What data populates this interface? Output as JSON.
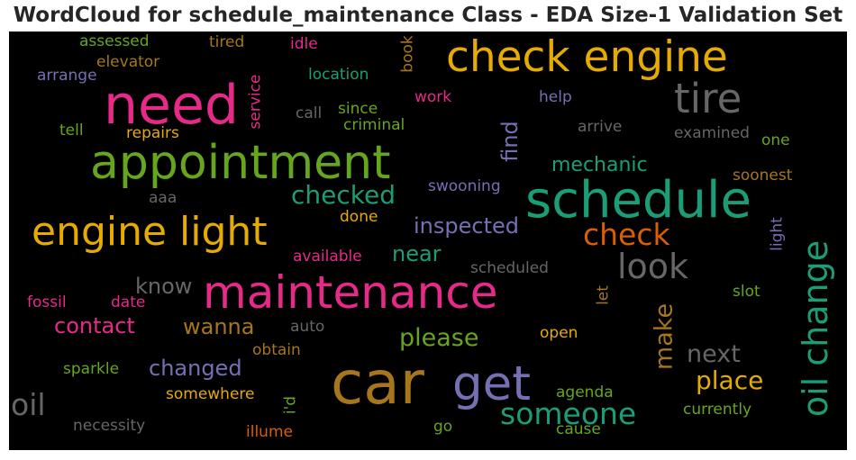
{
  "title": "WordCloud for schedule_maintenance Class - EDA Size-1 Validation Set",
  "words": [
    {
      "text": "maintenance",
      "color": "#e7298a",
      "vertical": false
    },
    {
      "text": "car",
      "color": "#a6761d",
      "vertical": false
    },
    {
      "text": "need",
      "color": "#e7298a",
      "vertical": false
    },
    {
      "text": "appointment",
      "color": "#66a61e",
      "vertical": false
    },
    {
      "text": "schedule",
      "color": "#1b9e77",
      "vertical": false
    },
    {
      "text": "check engine",
      "color": "#e6ab02",
      "vertical": false
    },
    {
      "text": "get",
      "color": "#7570b3",
      "vertical": false
    },
    {
      "text": "engine light",
      "color": "#e6ab02",
      "vertical": false
    },
    {
      "text": "tire",
      "color": "#666666",
      "vertical": false
    },
    {
      "text": "oil change",
      "color": "#1b9e77",
      "vertical": true
    },
    {
      "text": "look",
      "color": "#666666",
      "vertical": false
    },
    {
      "text": "check",
      "color": "#d95f02",
      "vertical": false
    },
    {
      "text": "someone",
      "color": "#1b9e77",
      "vertical": false
    },
    {
      "text": "oil",
      "color": "#666666",
      "vertical": false
    },
    {
      "text": "checked",
      "color": "#1b9e77",
      "vertical": false
    },
    {
      "text": "place",
      "color": "#e6ab02",
      "vertical": false
    },
    {
      "text": "please",
      "color": "#66a61e",
      "vertical": false
    },
    {
      "text": "make",
      "color": "#a6761d",
      "vertical": true
    },
    {
      "text": "next",
      "color": "#666666",
      "vertical": false
    },
    {
      "text": "inspected",
      "color": "#7570b3",
      "vertical": false
    },
    {
      "text": "changed",
      "color": "#7570b3",
      "vertical": false
    },
    {
      "text": "contact",
      "color": "#e7298a",
      "vertical": false
    },
    {
      "text": "wanna",
      "color": "#a6761d",
      "vertical": false
    },
    {
      "text": "mechanic",
      "color": "#1b9e77",
      "vertical": false
    },
    {
      "text": "find",
      "color": "#7570b3",
      "vertical": true
    },
    {
      "text": "know",
      "color": "#666666",
      "vertical": false
    },
    {
      "text": "near",
      "color": "#1b9e77",
      "vertical": false
    },
    {
      "text": "assessed",
      "color": "#66a61e",
      "vertical": false
    },
    {
      "text": "tired",
      "color": "#a6761d",
      "vertical": false
    },
    {
      "text": "idle",
      "color": "#e7298a",
      "vertical": false
    },
    {
      "text": "book",
      "color": "#a6761d",
      "vertical": true
    },
    {
      "text": "elevator",
      "color": "#a6761d",
      "vertical": false
    },
    {
      "text": "arrange",
      "color": "#7570b3",
      "vertical": false
    },
    {
      "text": "service",
      "color": "#e7298a",
      "vertical": true
    },
    {
      "text": "location",
      "color": "#1b9e77",
      "vertical": false
    },
    {
      "text": "work",
      "color": "#e7298a",
      "vertical": false
    },
    {
      "text": "help",
      "color": "#7570b3",
      "vertical": false
    },
    {
      "text": "call",
      "color": "#666666",
      "vertical": false
    },
    {
      "text": "since",
      "color": "#66a61e",
      "vertical": false
    },
    {
      "text": "criminal",
      "color": "#66a61e",
      "vertical": false
    },
    {
      "text": "arrive",
      "color": "#666666",
      "vertical": false
    },
    {
      "text": "tell",
      "color": "#66a61e",
      "vertical": false
    },
    {
      "text": "repairs",
      "color": "#e6ab02",
      "vertical": false
    },
    {
      "text": "examined",
      "color": "#666666",
      "vertical": false
    },
    {
      "text": "one",
      "color": "#66a61e",
      "vertical": false
    },
    {
      "text": "soonest",
      "color": "#a6761d",
      "vertical": false
    },
    {
      "text": "swooning",
      "color": "#7570b3",
      "vertical": false
    },
    {
      "text": "aaa",
      "color": "#666666",
      "vertical": false
    },
    {
      "text": "done",
      "color": "#e6ab02",
      "vertical": false
    },
    {
      "text": "light",
      "color": "#7570b3",
      "vertical": true
    },
    {
      "text": "available",
      "color": "#e7298a",
      "vertical": false
    },
    {
      "text": "scheduled",
      "color": "#666666",
      "vertical": false
    },
    {
      "text": "fossil",
      "color": "#e7298a",
      "vertical": false
    },
    {
      "text": "date",
      "color": "#e7298a",
      "vertical": false
    },
    {
      "text": "let",
      "color": "#a6761d",
      "vertical": true
    },
    {
      "text": "slot",
      "color": "#66a61e",
      "vertical": false
    },
    {
      "text": "auto",
      "color": "#666666",
      "vertical": false
    },
    {
      "text": "obtain",
      "color": "#a6761d",
      "vertical": false
    },
    {
      "text": "open",
      "color": "#e6ab02",
      "vertical": false
    },
    {
      "text": "sparkle",
      "color": "#66a61e",
      "vertical": false
    },
    {
      "text": "somewhere",
      "color": "#e6ab02",
      "vertical": false
    },
    {
      "text": "i'd",
      "color": "#66a61e",
      "vertical": true
    },
    {
      "text": "agenda",
      "color": "#66a61e",
      "vertical": false
    },
    {
      "text": "currently",
      "color": "#66a61e",
      "vertical": false
    },
    {
      "text": "necessity",
      "color": "#666666",
      "vertical": false
    },
    {
      "text": "illume",
      "color": "#d95f02",
      "vertical": false
    },
    {
      "text": "go",
      "color": "#66a61e",
      "vertical": false
    },
    {
      "text": "cause",
      "color": "#66a61e",
      "vertical": false
    }
  ]
}
